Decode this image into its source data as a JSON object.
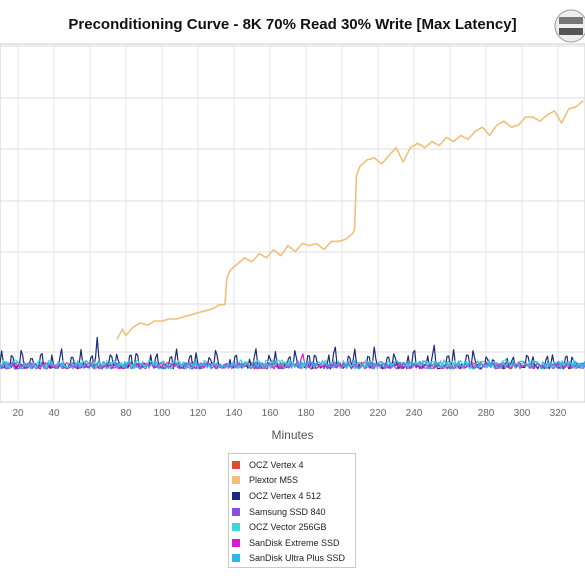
{
  "chart_data": {
    "type": "line",
    "title": "Preconditioning Curve - 8K 70% Read 30% Write [Max Latency]",
    "xlabel": "Minutes",
    "ylabel": "",
    "x_ticks": [
      20,
      40,
      60,
      80,
      100,
      120,
      140,
      160,
      180,
      200,
      220,
      240,
      260,
      280,
      300,
      320
    ],
    "xlim": [
      10,
      335
    ],
    "grid": true,
    "legend_position": "bottom",
    "series": [
      {
        "name": "OCZ Vertex 4",
        "color": "#e24a33",
        "x": [],
        "values": []
      },
      {
        "name": "Plextor M5S",
        "color": "#f0c07a",
        "x": [
          75,
          78,
          80,
          84,
          88,
          92,
          96,
          100,
          104,
          108,
          112,
          116,
          120,
          124,
          128,
          132,
          135,
          136,
          138,
          142,
          146,
          150,
          154,
          158,
          162,
          166,
          170,
          174,
          178,
          182,
          186,
          190,
          194,
          198,
          202,
          206,
          207,
          208,
          210,
          214,
          218,
          222,
          226,
          230,
          234,
          238,
          242,
          246,
          250,
          254,
          258,
          262,
          266,
          270,
          274,
          278,
          282,
          286,
          290,
          294,
          298,
          302,
          306,
          310,
          314,
          318,
          322,
          326,
          330,
          334
        ],
        "values": [
          1.6,
          2.1,
          1.8,
          2.2,
          2.4,
          2.3,
          2.5,
          2.5,
          2.6,
          2.6,
          2.7,
          2.8,
          2.9,
          3.0,
          3.1,
          3.3,
          3.3,
          4.6,
          5.0,
          5.3,
          5.6,
          5.4,
          5.8,
          5.6,
          6.0,
          5.7,
          6.2,
          5.9,
          6.3,
          6.2,
          6.3,
          6.0,
          6.4,
          6.4,
          6.5,
          6.8,
          7.0,
          9.6,
          10.1,
          10.4,
          10.5,
          10.2,
          10.6,
          11.0,
          10.3,
          11.0,
          11.2,
          11.0,
          11.3,
          11.1,
          11.5,
          11.3,
          11.6,
          11.4,
          11.8,
          12.0,
          11.6,
          12.1,
          12.3,
          12.0,
          12.1,
          12.5,
          12.5,
          12.3,
          12.6,
          12.8,
          12.2,
          12.9,
          13.0,
          13.3
        ]
      },
      {
        "name": "OCZ Vertex 4 512",
        "color": "#1b2b7a",
        "x": [
          11,
          22,
          33,
          44,
          55,
          64,
          75,
          86,
          97,
          108,
          119,
          130,
          141,
          152,
          163,
          174,
          185,
          196,
          207,
          218,
          229,
          240,
          251,
          262,
          273,
          284,
          295,
          306,
          317,
          328
        ],
        "values": [
          1.1,
          1.3,
          1.2,
          1.3,
          1.1,
          1.7,
          1.0,
          1.2,
          1.1,
          1.2,
          1.0,
          1.3,
          1.1,
          1.3,
          1.0,
          1.2,
          1.1,
          1.5,
          1.2,
          1.3,
          1.1,
          1.4,
          1.5,
          1.1,
          1.2,
          0.8,
          0.9,
          0.8,
          0.9,
          0.9
        ]
      },
      {
        "name": "Samsung SSD 840",
        "color": "#8a4fe0",
        "x": [],
        "values": []
      },
      {
        "name": "OCZ Vector 256GB",
        "color": "#3fd6d6",
        "x": [],
        "values": []
      },
      {
        "name": "SanDisk Extreme SSD",
        "color": "#d41bd4",
        "x": [
          178
        ],
        "values": [
          1.1
        ]
      },
      {
        "name": "SanDisk Ultra Plus SSD",
        "color": "#33b2f0",
        "x": [],
        "values": []
      }
    ]
  }
}
